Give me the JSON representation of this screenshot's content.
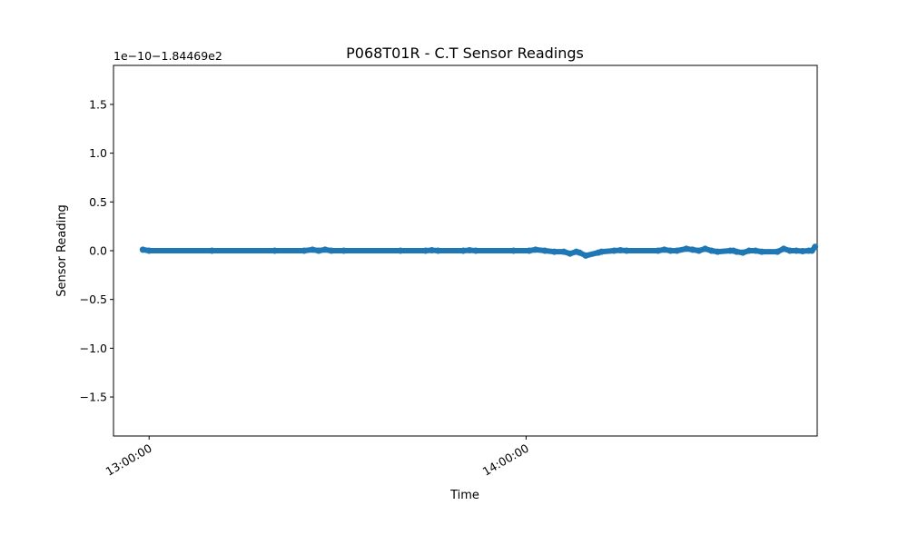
{
  "chart_data": {
    "type": "line",
    "title": "P068T01R - C.T Sensor Readings",
    "xlabel": "Time",
    "ylabel": "Sensor Reading",
    "offset_text": "1e−10−1.84469e2",
    "x_ticks": [
      "13:00:00",
      "14:00:00"
    ],
    "y_ticks": [
      "−1.5",
      "−1.0",
      "−0.5",
      "0.0",
      "0.5",
      "1.0",
      "1.5"
    ],
    "xlim": [
      "12:54:20",
      "14:46:20"
    ],
    "ylim": [
      -1.9,
      1.9
    ],
    "grid": false,
    "series": [
      {
        "color": "#1f77b4",
        "points": [
          [
            "12:59:00",
            0.01
          ],
          [
            "13:00:00",
            0.0
          ],
          [
            "13:10:00",
            0.0
          ],
          [
            "13:20:00",
            0.0
          ],
          [
            "13:24:40",
            0.0
          ],
          [
            "13:26:00",
            0.01
          ],
          [
            "13:27:00",
            0.0
          ],
          [
            "13:28:00",
            0.01
          ],
          [
            "13:29:00",
            0.0
          ],
          [
            "13:31:00",
            0.0
          ],
          [
            "13:40:00",
            0.0
          ],
          [
            "13:44:00",
            0.0
          ],
          [
            "13:45:00",
            0.005
          ],
          [
            "13:46:00",
            0.0
          ],
          [
            "13:50:00",
            0.0
          ],
          [
            "13:51:00",
            0.005
          ],
          [
            "13:52:00",
            0.0
          ],
          [
            "13:58:00",
            0.0
          ],
          [
            "14:00:30",
            0.0
          ],
          [
            "14:01:30",
            0.01
          ],
          [
            "14:03:00",
            0.0
          ],
          [
            "14:04:30",
            -0.01
          ],
          [
            "14:06:00",
            -0.01
          ],
          [
            "14:07:00",
            -0.03
          ],
          [
            "14:08:00",
            -0.01
          ],
          [
            "14:08:30",
            -0.02
          ],
          [
            "14:09:30",
            -0.05
          ],
          [
            "14:11:30",
            -0.02
          ],
          [
            "14:12:00",
            -0.01
          ],
          [
            "14:14:00",
            0.0
          ],
          [
            "14:15:00",
            0.005
          ],
          [
            "14:16:00",
            0.0
          ],
          [
            "14:21:00",
            0.0
          ],
          [
            "14:22:00",
            0.01
          ],
          [
            "14:23:00",
            0.0
          ],
          [
            "14:24:00",
            0.0
          ],
          [
            "14:25:30",
            0.02
          ],
          [
            "14:26:30",
            0.01
          ],
          [
            "14:27:30",
            0.0
          ],
          [
            "14:28:30",
            0.02
          ],
          [
            "14:29:30",
            0.0
          ],
          [
            "14:30:30",
            -0.01
          ],
          [
            "14:32:30",
            0.0
          ],
          [
            "14:33:00",
            0.0
          ],
          [
            "14:33:30",
            -0.01
          ],
          [
            "14:34:30",
            -0.02
          ],
          [
            "14:35:30",
            0.0
          ],
          [
            "14:36:30",
            0.0
          ],
          [
            "14:37:30",
            -0.01
          ],
          [
            "14:40:00",
            -0.01
          ],
          [
            "14:41:00",
            0.02
          ],
          [
            "14:42:00",
            0.0
          ],
          [
            "14:43:00",
            0.0
          ],
          [
            "14:44:00",
            -0.005
          ],
          [
            "14:45:00",
            0.0
          ],
          [
            "14:45:30",
            0.0
          ],
          [
            "14:46:00",
            0.04
          ]
        ]
      }
    ]
  }
}
